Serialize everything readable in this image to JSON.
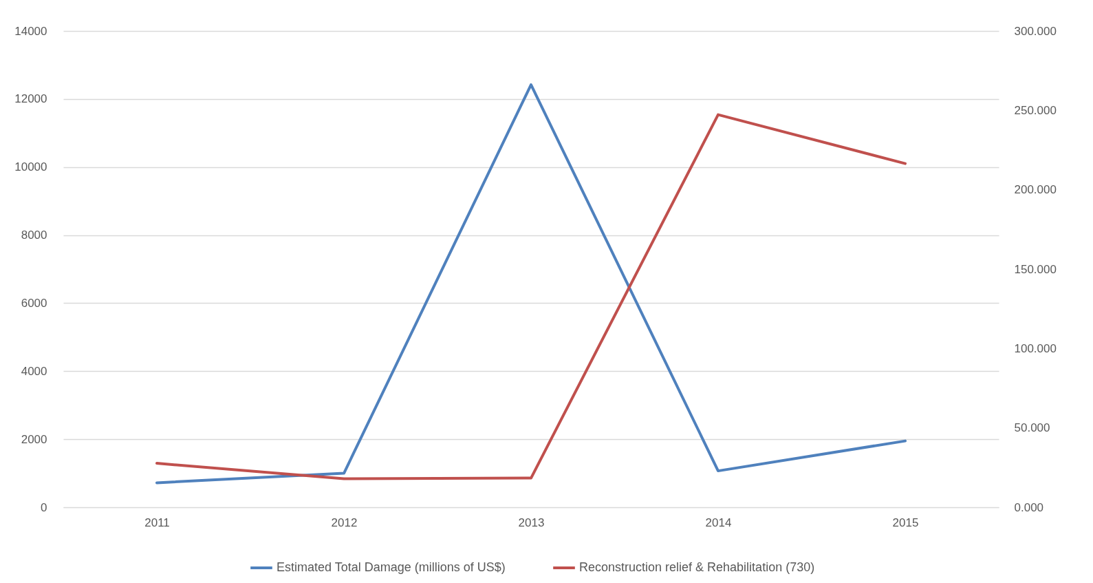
{
  "chart_data": {
    "type": "line",
    "categories": [
      "2011",
      "2012",
      "2013",
      "2014",
      "2015"
    ],
    "series": [
      {
        "name": "Estimated Total Damage (millions of US$)",
        "color": "#4f81bd",
        "values": [
          720,
          1000,
          12420,
          1070,
          1950
        ]
      },
      {
        "name": "Reconstruction relief & Rehabilitation (730)",
        "color": "#c0504d",
        "axis": "y2",
        "values": [
          27.7,
          18.0,
          18.4,
          247.3,
          216.5
        ]
      }
    ],
    "ylim": [
      0,
      14000
    ],
    "yticks": [
      0,
      2000,
      4000,
      6000,
      8000,
      10000,
      12000,
      14000
    ],
    "y2lim": [
      0,
      300
    ],
    "y2ticks": [
      {
        "value": 0,
        "label": "0.000"
      },
      {
        "value": 50,
        "label": "50.000"
      },
      {
        "value": 100,
        "label": "100.000"
      },
      {
        "value": 150,
        "label": "150.000"
      },
      {
        "value": 200,
        "label": "200.000"
      },
      {
        "value": 250,
        "label": "250.000"
      },
      {
        "value": 300,
        "label": "300.000"
      }
    ],
    "grid": "y",
    "legend": "bottom"
  }
}
